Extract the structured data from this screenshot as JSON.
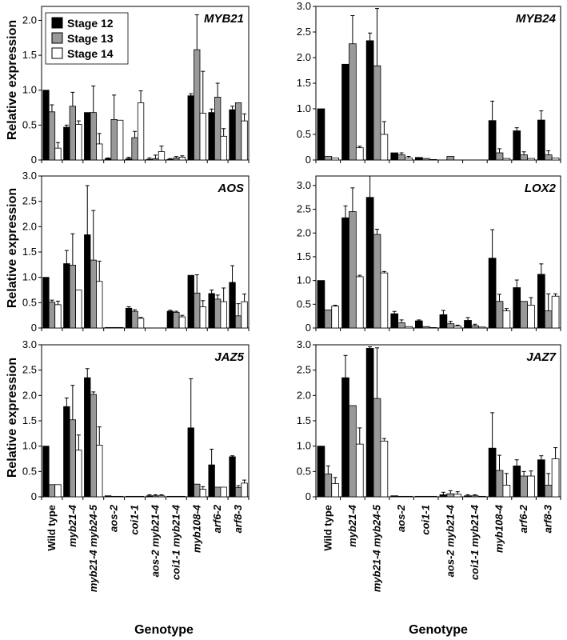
{
  "figure": {
    "ylabel": "Relative expression",
    "xlabel": "Genotype",
    "legend": {
      "placement": "top-left of first panel",
      "entries": [
        {
          "label": "Stage 12",
          "color": "#000000"
        },
        {
          "label": "Stage 13",
          "color": "#999999"
        },
        {
          "label": "Stage 14",
          "color": "#ffffff"
        }
      ]
    }
  },
  "categories": [
    {
      "label": "Wild type",
      "italic": false
    },
    {
      "label": "myb21-4",
      "italic": true
    },
    {
      "label": "myb21-4 myb24-5",
      "italic": true
    },
    {
      "label": "aos-2",
      "italic": true
    },
    {
      "label": "coi1-1",
      "italic": true
    },
    {
      "label": "aos-2 myb21-4",
      "italic": true
    },
    {
      "label": "coi1-1 myb21-4",
      "italic": true
    },
    {
      "label": "myb108-4",
      "italic": true
    },
    {
      "label": "arf6-2",
      "italic": true
    },
    {
      "label": "arf8-3",
      "italic": true
    }
  ],
  "chart_data": [
    {
      "type": "bar",
      "title": "MYB21",
      "ylim": [
        0,
        2.2
      ],
      "yticks": [
        "0",
        "0.5",
        "1.0",
        "1.5",
        "2.0"
      ],
      "series": [
        {
          "name": "Stage 12",
          "values": [
            1.0,
            0.47,
            0.68,
            0.02,
            0.02,
            0.01,
            0.01,
            0.92,
            0.68,
            0.72
          ],
          "errors": [
            0.0,
            0.03,
            0.0,
            0.01,
            0.02,
            0.02,
            0.01,
            0.03,
            0.05,
            0.05
          ]
        },
        {
          "name": "Stage 13",
          "values": [
            0.69,
            0.77,
            0.68,
            0.58,
            0.32,
            0.02,
            0.03,
            1.58,
            0.9,
            0.82
          ],
          "errors": [
            0.1,
            0.2,
            0.38,
            0.35,
            0.09,
            0.05,
            0.02,
            0.5,
            0.2,
            0.0
          ]
        },
        {
          "name": "Stage 14",
          "values": [
            0.17,
            0.51,
            0.23,
            0.57,
            0.82,
            0.12,
            0.04,
            0.67,
            0.34,
            0.56
          ],
          "errors": [
            0.08,
            0.05,
            0.15,
            0.0,
            0.17,
            0.08,
            0.02,
            0.6,
            0.11,
            0.1
          ]
        }
      ]
    },
    {
      "type": "bar",
      "title": "MYB24",
      "ylim": [
        0,
        3.0
      ],
      "yticks": [
        "0",
        "0.5",
        "1.0",
        "1.5",
        "2.0",
        "2.5",
        "3.0"
      ],
      "series": [
        {
          "name": "Stage 12",
          "values": [
            1.0,
            1.87,
            2.33,
            0.14,
            0.05,
            0.0,
            0.0,
            0.77,
            0.57,
            0.78
          ],
          "errors": [
            0.0,
            0.0,
            0.15,
            0.0,
            0.0,
            0.0,
            0.0,
            0.38,
            0.06,
            0.18
          ]
        },
        {
          "name": "Stage 13",
          "values": [
            0.07,
            2.27,
            1.84,
            0.1,
            0.03,
            0.07,
            0.0,
            0.14,
            0.1,
            0.1
          ],
          "errors": [
            0.0,
            0.55,
            1.12,
            0.04,
            0.0,
            0.0,
            0.0,
            0.08,
            0.06,
            0.08
          ]
        },
        {
          "name": "Stage 14",
          "values": [
            0.04,
            0.24,
            0.5,
            0.04,
            0.01,
            0.0,
            0.0,
            0.03,
            0.03,
            0.04
          ],
          "errors": [
            0.0,
            0.03,
            0.25,
            0.03,
            0.0,
            0.0,
            0.0,
            0.0,
            0.0,
            0.0
          ]
        }
      ]
    },
    {
      "type": "bar",
      "title": "AOS",
      "ylim": [
        0,
        3.0
      ],
      "yticks": [
        "0",
        "0.5",
        "1.0",
        "1.5",
        "2.0",
        "2.5",
        "3.0"
      ],
      "series": [
        {
          "name": "Stage 12",
          "values": [
            1.0,
            1.27,
            1.84,
            0.01,
            0.39,
            0.0,
            0.33,
            1.04,
            0.68,
            0.9
          ],
          "errors": [
            0.0,
            0.26,
            0.97,
            0.0,
            0.03,
            0.0,
            0.02,
            0.0,
            0.07,
            0.33
          ]
        },
        {
          "name": "Stage 13",
          "values": [
            0.51,
            1.24,
            1.34,
            0.01,
            0.33,
            0.0,
            0.31,
            0.69,
            0.57,
            0.24
          ],
          "errors": [
            0.04,
            0.62,
            0.98,
            0.0,
            0.03,
            0.0,
            0.02,
            0.36,
            0.08,
            0.24
          ]
        },
        {
          "name": "Stage 14",
          "values": [
            0.46,
            0.75,
            0.92,
            0.01,
            0.19,
            0.0,
            0.22,
            0.42,
            0.52,
            0.52
          ],
          "errors": [
            0.07,
            0.0,
            0.4,
            0.0,
            0.02,
            0.0,
            0.03,
            0.12,
            0.27,
            0.15
          ]
        }
      ]
    },
    {
      "type": "bar",
      "title": "LOX2",
      "ylim": [
        0,
        3.2
      ],
      "yticks": [
        "0",
        "0.5",
        "1.0",
        "1.5",
        "2.0",
        "2.5",
        "3.0"
      ],
      "series": [
        {
          "name": "Stage 12",
          "values": [
            1.0,
            2.32,
            2.75,
            0.3,
            0.15,
            0.28,
            0.16,
            1.47,
            0.85,
            1.13
          ],
          "errors": [
            0.0,
            0.25,
            0.45,
            0.05,
            0.02,
            0.09,
            0.06,
            0.6,
            0.16,
            0.22
          ]
        },
        {
          "name": "Stage 13",
          "values": [
            0.38,
            2.45,
            1.97,
            0.11,
            0.03,
            0.09,
            0.05,
            0.56,
            0.56,
            0.36
          ],
          "errors": [
            0.0,
            0.5,
            0.11,
            0.06,
            0.0,
            0.05,
            0.03,
            0.15,
            0.0,
            0.36
          ]
        },
        {
          "name": "Stage 14",
          "values": [
            0.46,
            1.08,
            1.16,
            0.03,
            0.01,
            0.04,
            0.02,
            0.36,
            0.48,
            0.67
          ],
          "errors": [
            0.02,
            0.03,
            0.03,
            0.0,
            0.0,
            0.02,
            0.0,
            0.05,
            0.16,
            0.05
          ]
        }
      ]
    },
    {
      "type": "bar",
      "title": "JAZ5",
      "ylim": [
        0,
        3.0
      ],
      "yticks": [
        "0",
        "0.5",
        "1.0",
        "1.5",
        "2.0",
        "2.5",
        "3.0"
      ],
      "series": [
        {
          "name": "Stage 12",
          "values": [
            1.0,
            1.78,
            2.35,
            0.02,
            0.01,
            0.02,
            0.01,
            1.36,
            0.63,
            0.79
          ],
          "errors": [
            0.0,
            0.17,
            0.18,
            0.0,
            0.0,
            0.02,
            0.0,
            0.97,
            0.31,
            0.02
          ]
        },
        {
          "name": "Stage 13",
          "values": [
            0.24,
            1.52,
            2.02,
            0.01,
            0.01,
            0.02,
            0.01,
            0.25,
            0.19,
            0.18
          ],
          "errors": [
            0.0,
            0.68,
            0.05,
            0.0,
            0.0,
            0.02,
            0.0,
            0.0,
            0.0,
            0.04
          ]
        },
        {
          "name": "Stage 14",
          "values": [
            0.24,
            0.92,
            1.02,
            0.01,
            0.01,
            0.02,
            0.01,
            0.15,
            0.19,
            0.27
          ],
          "errors": [
            0.0,
            0.3,
            0.36,
            0.0,
            0.0,
            0.02,
            0.0,
            0.05,
            0.0,
            0.06
          ]
        }
      ]
    },
    {
      "type": "bar",
      "title": "JAZ7",
      "ylim": [
        0,
        3.0
      ],
      "yticks": [
        "0",
        "0.5",
        "1.0",
        "1.5",
        "2.0",
        "2.5",
        "3.0"
      ],
      "series": [
        {
          "name": "Stage 12",
          "values": [
            1.0,
            2.35,
            2.93,
            0.02,
            0.01,
            0.04,
            0.02,
            0.96,
            0.61,
            0.73
          ],
          "errors": [
            0.0,
            0.44,
            0.03,
            0.0,
            0.0,
            0.05,
            0.02,
            0.7,
            0.12,
            0.08
          ]
        },
        {
          "name": "Stage 13",
          "values": [
            0.45,
            1.8,
            1.94,
            0.01,
            0.01,
            0.06,
            0.02,
            0.52,
            0.41,
            0.23
          ],
          "errors": [
            0.16,
            0.0,
            1.0,
            0.0,
            0.0,
            0.06,
            0.02,
            0.3,
            0.09,
            0.23
          ]
        },
        {
          "name": "Stage 14",
          "values": [
            0.26,
            1.04,
            1.1,
            0.01,
            0.01,
            0.05,
            0.01,
            0.23,
            0.41,
            0.75
          ],
          "errors": [
            0.12,
            0.32,
            0.05,
            0.0,
            0.0,
            0.05,
            0.0,
            0.23,
            0.1,
            0.22
          ]
        }
      ]
    }
  ]
}
